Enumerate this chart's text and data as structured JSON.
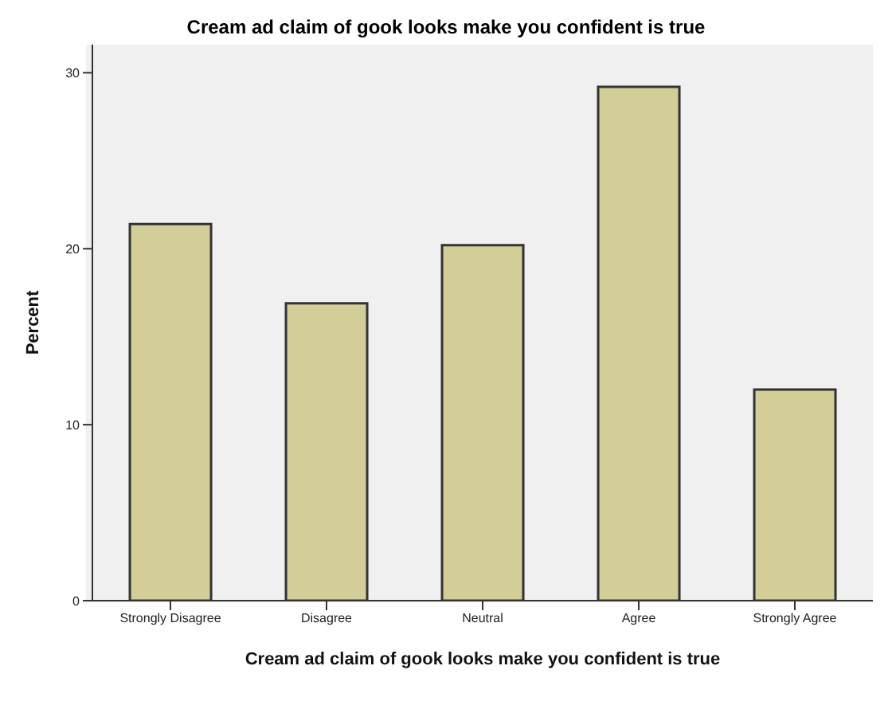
{
  "chart_data": {
    "type": "bar",
    "title": "Cream ad claim of gook looks make you confident is true",
    "xlabel": "Cream ad claim of gook looks make you confident is true",
    "ylabel": "Percent",
    "categories": [
      "Strongly Disagree",
      "Disagree",
      "Neutral",
      "Agree",
      "Strongly Agree"
    ],
    "values": [
      21.4,
      16.9,
      20.2,
      29.2,
      12.0
    ],
    "color": "#d3cd98",
    "ylim": [
      0,
      31.6
    ],
    "yticks": [
      0,
      10,
      20,
      30
    ],
    "grid": false,
    "legend": false
  }
}
